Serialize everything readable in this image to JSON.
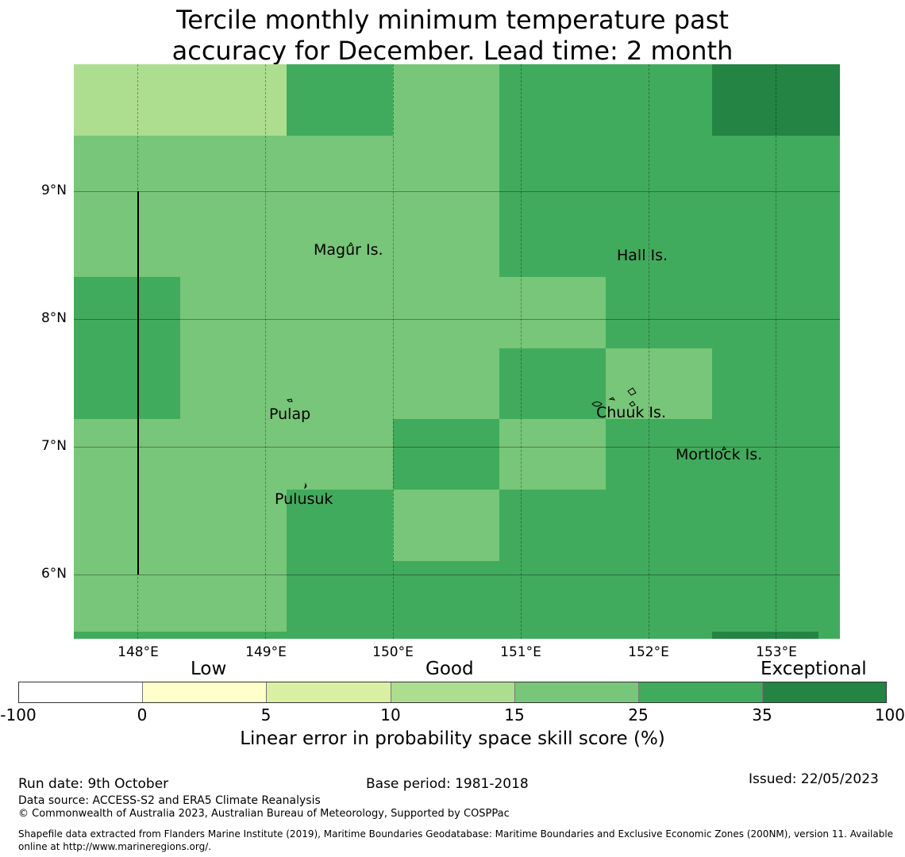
{
  "title": {
    "line1": "Tercile monthly minimum temperature past",
    "line2": "accuracy for December. Lead time: 2 month"
  },
  "map": {
    "lon_range": [
      147.5,
      153.5
    ],
    "lat_range": [
      5.5,
      10.0
    ],
    "x_ticks": [
      "148°E",
      "149°E",
      "150°E",
      "151°E",
      "152°E",
      "153°E"
    ],
    "y_ticks": [
      "9°N",
      "8°N",
      "7°N",
      "6°N"
    ],
    "places": [
      "Magur Is.",
      "Hall Is.",
      "Pulap",
      "Chuuk Is.",
      "Mortlock Is.",
      "Pulusuk"
    ]
  },
  "colorbar": {
    "tick_labels": [
      "-100",
      "0",
      "5",
      "10",
      "15",
      "25",
      "35",
      "100"
    ],
    "colors": [
      "#ffffff",
      "#ffffcc",
      "#d9f0a3",
      "#addd8e",
      "#78c679",
      "#41ab5d",
      "#238443"
    ],
    "categories": [
      "Low",
      "Good",
      "Exceptional"
    ],
    "label": "Linear error in probability space skill score (%)"
  },
  "footer": {
    "run_date": "Run date: 9th October",
    "base_period": "Base period: 1981-2018",
    "issued": "Issued: 22/05/2023",
    "data_source": "Data source: ACCESS-S2 and ERA5 Climate Reanalysis",
    "copyright": "© Commonwealth of Australia 2023, Australian Bureau of Meteorology, Supported by COSPPac",
    "shapefile": "Shapefile data extracted from Flanders Marine Institute (2019), Maritime Boundaries Geodatabase: Maritime Boundaries and Exclusive Economic Zones (200NM), version 11. Available online at http://www.marineregions.org/."
  }
}
